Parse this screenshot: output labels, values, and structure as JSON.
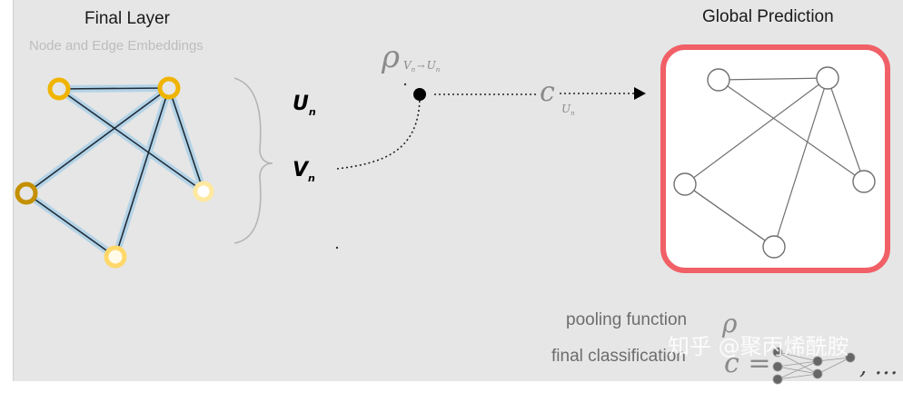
{
  "final_layer": {
    "title": "Final Layer",
    "subtitle": "Node and Edge Embeddings"
  },
  "labels": {
    "u_main": "U",
    "u_sub": "n",
    "v_main": "V",
    "v_sub": "n",
    "rho": "ρ",
    "rho_sub_v": "V",
    "rho_sub_v_n": "n",
    "rho_arrow": "→",
    "rho_sub_u": "U",
    "rho_sub_u_n": "n",
    "c": "c",
    "c_sub_u": "U",
    "c_sub_u_n": "n"
  },
  "global": {
    "title": "Global Prediction"
  },
  "legend": {
    "pooling": "pooling function",
    "pooling_symbol": "ρ",
    "classification": "final classification",
    "class_symbol": "c =",
    "ellipsis": ", …"
  },
  "watermark": "知乎 @聚丙烯酰胺",
  "colors": {
    "node_dark": "#c49000",
    "node_mid": "#f0b400",
    "node_light": "#ffe9a0",
    "edge_blue": "#6fb4dc",
    "highlight_red": "#f06066"
  }
}
